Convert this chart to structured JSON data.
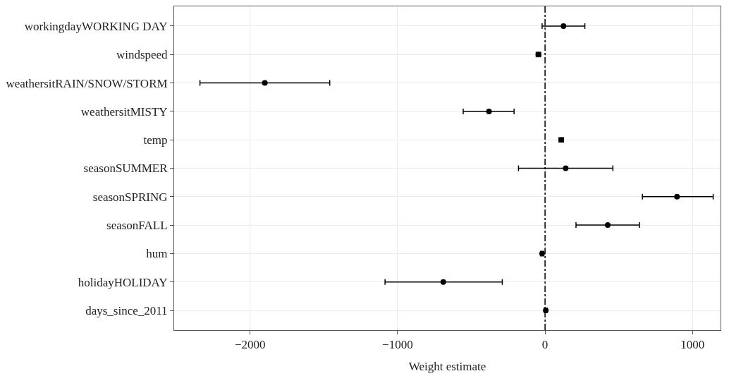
{
  "chart_data": {
    "type": "scatter",
    "orientation": "horizontal",
    "xlabel": "Weight estimate",
    "categories": [
      "workingdayWORKING DAY",
      "windspeed",
      "weathersitRAIN/SNOW/STORM",
      "weathersitMISTY",
      "temp",
      "seasonSUMMER",
      "seasonSPRING",
      "seasonFALL",
      "hum",
      "holidayHOLIDAY",
      "days_since_2011"
    ],
    "values": [
      125,
      -45,
      -1900,
      -380,
      110,
      140,
      895,
      425,
      -20,
      -690,
      5
    ],
    "errors": [
      [
        -20,
        270
      ],
      [
        -60,
        -30
      ],
      [
        -2340,
        -1460
      ],
      [
        -555,
        -210
      ],
      [
        95,
        125
      ],
      [
        -180,
        460
      ],
      [
        660,
        1140
      ],
      [
        210,
        640
      ],
      [
        -30,
        -10
      ],
      [
        -1085,
        -290
      ],
      [
        -5,
        15
      ]
    ],
    "color": "#000000",
    "marker": "circle",
    "xlim": [
      -2515,
      1190
    ],
    "xticks": [
      {
        "value": -2000,
        "label": "−2000"
      },
      {
        "value": -1000,
        "label": "−1000"
      },
      0,
      1000
    ],
    "grid": true,
    "ref_lines": [
      {
        "axis": "x",
        "value": 0,
        "line_style": "dashed",
        "color": "#000000"
      }
    ]
  }
}
